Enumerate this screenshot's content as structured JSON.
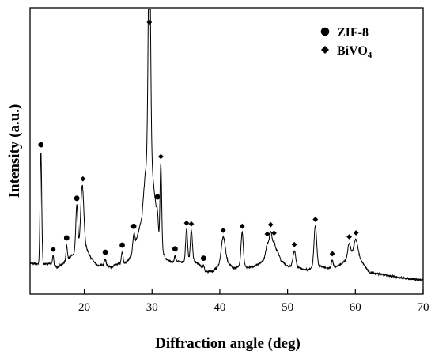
{
  "chart_data": {
    "type": "line",
    "title": "",
    "xlabel": "Diffraction angle (deg)",
    "ylabel": "Intensity (a.u.)",
    "xlim": [
      12,
      70
    ],
    "x_ticks": [
      20,
      30,
      40,
      50,
      60,
      70
    ],
    "x_tick_labels": [
      "20",
      "30",
      "40",
      "50",
      "60",
      "70"
    ],
    "y_ticks_labeled": false,
    "grid": false,
    "legend": {
      "position": "top-right",
      "entries": [
        {
          "marker": "circle",
          "label": "ZIF-8"
        },
        {
          "marker": "diamond",
          "label_main": "BiVO",
          "label_sub": "4"
        }
      ]
    },
    "line_color": "#000000",
    "ZIF_8_peaks": [
      13.6,
      17.4,
      18.9,
      23.1,
      25.6,
      27.3,
      30.8,
      33.4,
      37.6
    ],
    "BiVO4_peaks": [
      15.4,
      19.8,
      29.6,
      31.3,
      35.1,
      35.8,
      40.5,
      43.3,
      47.0,
      47.5,
      48.0,
      51.0,
      54.1,
      56.6,
      59.1,
      60.1
    ],
    "baseline": [
      [
        12.0,
        5.8
      ],
      [
        13.0,
        5.5
      ],
      [
        14.0,
        5.4
      ],
      [
        15.0,
        5.7
      ],
      [
        16.0,
        4.5
      ],
      [
        17.0,
        5.9
      ],
      [
        18.0,
        7.5
      ],
      [
        20.0,
        11.0
      ],
      [
        21.0,
        7.0
      ],
      [
        22.0,
        5.1
      ],
      [
        23.0,
        5.3
      ],
      [
        24.0,
        4.6
      ],
      [
        25.0,
        5.7
      ],
      [
        26.0,
        5.6
      ],
      [
        27.0,
        7.6
      ],
      [
        28.0,
        14.0
      ],
      [
        28.5,
        18.0
      ],
      [
        29.0,
        30.0
      ],
      [
        29.8,
        34.0
      ],
      [
        30.5,
        22.0
      ],
      [
        31.0,
        12.0
      ],
      [
        32.0,
        6.8
      ],
      [
        33.0,
        6.0
      ],
      [
        34.0,
        6.3
      ],
      [
        35.0,
        5.6
      ],
      [
        36.0,
        6.7
      ],
      [
        37.0,
        5.2
      ],
      [
        38.0,
        3.4
      ],
      [
        39.0,
        3.6
      ],
      [
        40.0,
        5.2
      ],
      [
        41.0,
        6.3
      ],
      [
        42.0,
        4.3
      ],
      [
        43.0,
        5.0
      ],
      [
        44.0,
        4.6
      ],
      [
        45.0,
        4.8
      ],
      [
        46.0,
        5.8
      ],
      [
        47.0,
        7.6
      ],
      [
        48.5,
        9.1
      ],
      [
        49.0,
        6.5
      ],
      [
        50.0,
        4.8
      ],
      [
        51.0,
        5.0
      ],
      [
        52.0,
        4.2
      ],
      [
        53.0,
        4.0
      ],
      [
        54.0,
        4.7
      ],
      [
        55.0,
        4.8
      ],
      [
        56.0,
        4.3
      ],
      [
        57.0,
        4.7
      ],
      [
        58.0,
        5.6
      ],
      [
        59.0,
        7.4
      ],
      [
        60.0,
        8.8
      ],
      [
        61.0,
        6.0
      ],
      [
        62.0,
        3.3
      ],
      [
        64.0,
        2.7
      ],
      [
        66.0,
        2.0
      ],
      [
        68.0,
        1.5
      ],
      [
        70.0,
        1.3
      ]
    ],
    "peaks": [
      {
        "x": 13.6,
        "h": 30.0,
        "w": 0.12
      },
      {
        "x": 15.4,
        "h": 2.5,
        "w": 0.1
      },
      {
        "x": 17.4,
        "h": 4.0,
        "w": 0.1
      },
      {
        "x": 18.9,
        "h": 12.0,
        "w": 0.15
      },
      {
        "x": 19.7,
        "h": 16.0,
        "w": 0.22
      },
      {
        "x": 23.1,
        "h": 1.5,
        "w": 0.12
      },
      {
        "x": 25.6,
        "h": 3.0,
        "w": 0.12
      },
      {
        "x": 27.3,
        "h": 4.0,
        "w": 0.15
      },
      {
        "x": 29.6,
        "h": 62.0,
        "w": 0.17
      },
      {
        "x": 30.8,
        "h": 4.0,
        "w": 0.12
      },
      {
        "x": 31.3,
        "h": 22.0,
        "w": 0.12
      },
      {
        "x": 33.4,
        "h": 1.5,
        "w": 0.12
      },
      {
        "x": 35.1,
        "h": 9.0,
        "w": 0.15
      },
      {
        "x": 35.8,
        "h": 8.0,
        "w": 0.15
      },
      {
        "x": 37.6,
        "h": 1.0,
        "w": 0.1
      },
      {
        "x": 40.5,
        "h": 7.0,
        "w": 0.28
      },
      {
        "x": 43.3,
        "h": 9.0,
        "w": 0.17
      },
      {
        "x": 47.0,
        "h": 3.0,
        "w": 0.2
      },
      {
        "x": 47.5,
        "h": 6.0,
        "w": 0.2
      },
      {
        "x": 48.0,
        "h": 2.5,
        "w": 0.18
      },
      {
        "x": 51.0,
        "h": 4.0,
        "w": 0.2
      },
      {
        "x": 54.1,
        "h": 11.0,
        "w": 0.2
      },
      {
        "x": 56.6,
        "h": 2.0,
        "w": 0.12
      },
      {
        "x": 59.1,
        "h": 3.5,
        "w": 0.2
      },
      {
        "x": 60.1,
        "h": 3.5,
        "w": 0.28
      }
    ]
  }
}
